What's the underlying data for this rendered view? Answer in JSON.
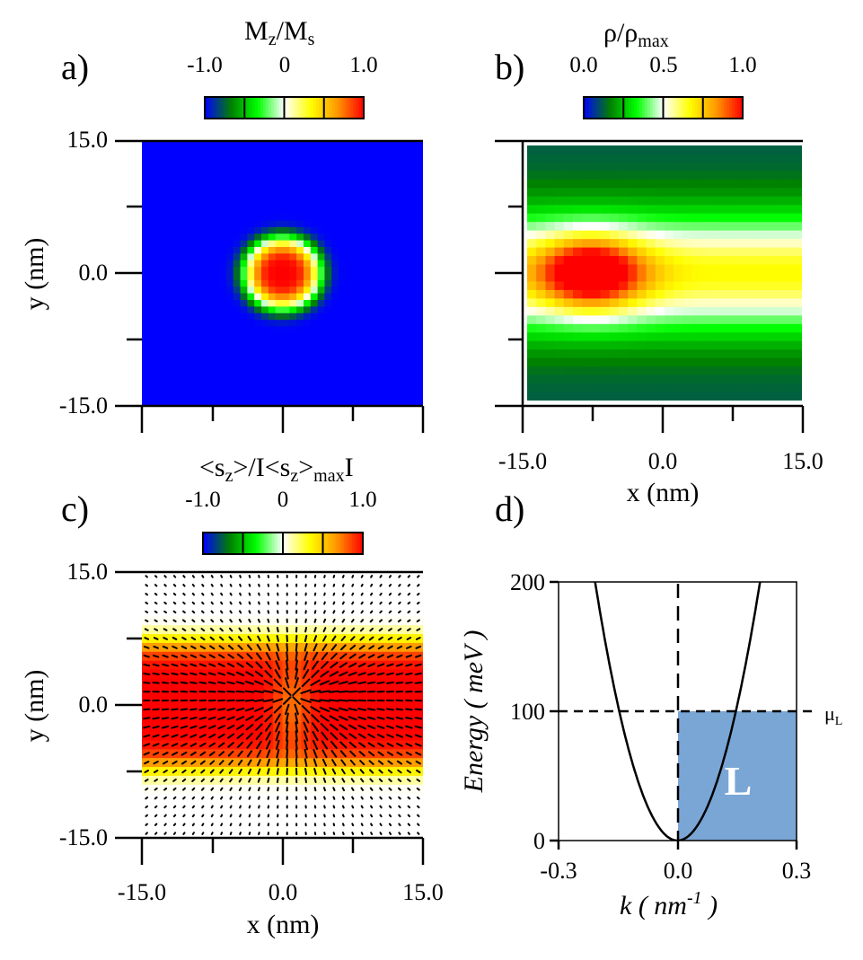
{
  "panels": {
    "a": {
      "label": "a)",
      "colorbar": {
        "title_main": "M",
        "title_sub1": "z",
        "title_slash": "/M",
        "title_sub2": "s",
        "ticks": [
          "-1.0",
          "0",
          "1.0"
        ]
      },
      "ylabel": "y (nm)",
      "yticks": [
        "15.0",
        "0.0",
        "-15.0"
      ]
    },
    "b": {
      "label": "b)",
      "colorbar": {
        "title_main": "ρ/ρ",
        "title_sub": "max",
        "ticks": [
          "0.0",
          "0.5",
          "1.0"
        ]
      },
      "xlabel": "x (nm)",
      "xticks": [
        "-15.0",
        "0.0",
        "15.0"
      ]
    },
    "c": {
      "label": "c)",
      "colorbar": {
        "t1": "<s",
        "t1sub": "z",
        "t2": ">/I<s",
        "t2sub1": "z",
        "t2mid": ">",
        "t2sub2": "max",
        "t3": "I",
        "ticks": [
          "-1.0",
          "0",
          "1.0"
        ]
      },
      "ylabel": "y (nm)",
      "yticks": [
        "15.0",
        "0.0",
        "-15.0"
      ],
      "xlabel": "x (nm)",
      "xticks": [
        "-15.0",
        "0.0",
        "15.0"
      ]
    },
    "d": {
      "label": "d)",
      "ylabel_main": "Energy ( meV )",
      "xlabel_main": "k ( nm",
      "xlabel_sup": "-1",
      "xlabel_end": " )",
      "yticks": [
        "200",
        "100",
        "0"
      ],
      "xticks": [
        "-0.3",
        "0.0",
        "0.3"
      ],
      "mu_label": "μ",
      "mu_sub": "L",
      "region_label": "L",
      "region_color": "#7aa6d6"
    }
  },
  "chart_data": [
    {
      "type": "heatmap",
      "panel": "a",
      "title": "Mz/Ms",
      "description_values": "skyrmion-like texture: Mz = -1 background, +1 at center",
      "xlim": [
        -15,
        15
      ],
      "ylim": [
        -15,
        15
      ],
      "colorbar_range": [
        -1.0,
        1.0
      ],
      "center": [
        0,
        0
      ],
      "core_radius_nm": 4.5
    },
    {
      "type": "heatmap",
      "panel": "b",
      "title": "ρ/ρmax",
      "xlim": [
        -15,
        15
      ],
      "ylim": [
        -15,
        15
      ],
      "colorbar_range": [
        0.0,
        1.0
      ],
      "xlabel": "x (nm)",
      "peak_position": [
        -8,
        0
      ]
    },
    {
      "type": "heatmap",
      "panel": "c",
      "title": "<sz>/I<sz>maxI",
      "xlim": [
        -15,
        15
      ],
      "ylim": [
        -15,
        15
      ],
      "colorbar_range": [
        -1.0,
        1.0
      ],
      "xlabel": "x (nm)",
      "ylabel": "y (nm)",
      "overlay": "in-plane spin vector field"
    },
    {
      "type": "line",
      "panel": "d",
      "xlabel": "k ( nm-1 )",
      "ylabel": "Energy ( meV )",
      "xlim": [
        -0.3,
        0.3
      ],
      "ylim": [
        0,
        200
      ],
      "series": [
        {
          "name": "dispersion",
          "x": [
            -0.22,
            -0.15,
            -0.1,
            -0.05,
            0.0,
            0.05,
            0.1,
            0.15,
            0.2
          ],
          "values": [
            200,
            100,
            44,
            11,
            0,
            11,
            44,
            100,
            178
          ]
        }
      ],
      "mu_L": 100,
      "shaded_region": {
        "k_range": [
          0.0,
          0.3
        ],
        "energy_range": [
          0,
          100
        ],
        "label": "L"
      }
    }
  ],
  "colors": {
    "cmap": [
      "#0000ff",
      "#008000",
      "#00ff00",
      "#ffffff",
      "#ffff00",
      "#ff9900",
      "#ff0000"
    ],
    "dot": "#000000"
  }
}
